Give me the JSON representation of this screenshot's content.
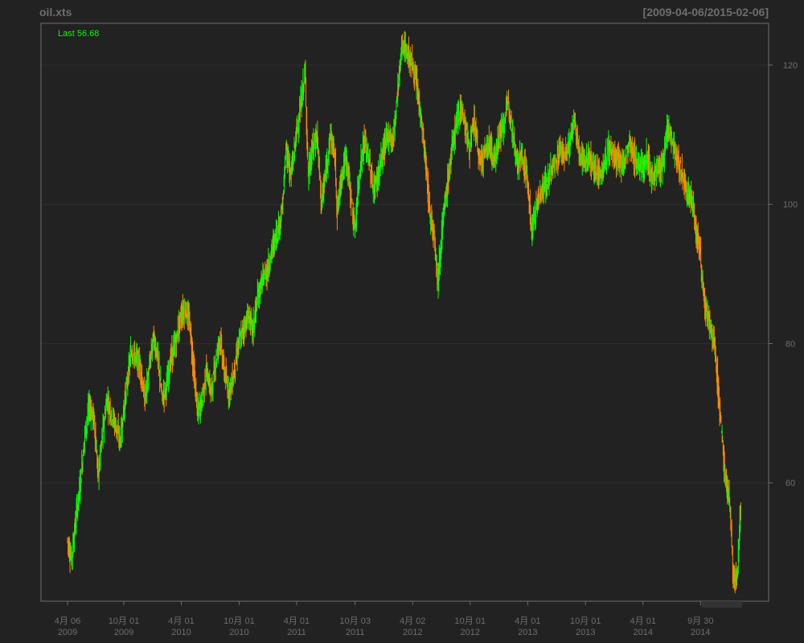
{
  "chart_data": {
    "type": "candlestick",
    "title": "oil.xts",
    "date_range": "[2009-04-06/2015-02-06]",
    "last_label": "Last 56.68",
    "ylim": [
      43,
      126
    ],
    "yticks": [
      60,
      80,
      100,
      120
    ],
    "grid": true,
    "colors": {
      "background": "#222222",
      "up": "#00ff00",
      "down": "#ff8c00",
      "text": "#6e6e6e",
      "grid": "#2e2e2e",
      "frame": "#6e6e6e",
      "last": "#00ff00"
    },
    "xticks": [
      {
        "date": "2009-04-06",
        "line1": "4月 06",
        "line2": "2009"
      },
      {
        "date": "2009-10-01",
        "line1": "10月 01",
        "line2": "2009"
      },
      {
        "date": "2010-04-01",
        "line1": "4月 01",
        "line2": "2010"
      },
      {
        "date": "2010-10-01",
        "line1": "10月 01",
        "line2": "2010"
      },
      {
        "date": "2011-04-01",
        "line1": "4月 01",
        "line2": "2011"
      },
      {
        "date": "2011-10-03",
        "line1": "10月 03",
        "line2": "2011"
      },
      {
        "date": "2012-04-02",
        "line1": "4月 02",
        "line2": "2012"
      },
      {
        "date": "2012-10-01",
        "line1": "10月 01",
        "line2": "2012"
      },
      {
        "date": "2013-04-01",
        "line1": "4月 01",
        "line2": "2013"
      },
      {
        "date": "2013-10-01",
        "line1": "10月 01",
        "line2": "2013"
      },
      {
        "date": "2014-04-01",
        "line1": "4月 01",
        "line2": "2014"
      },
      {
        "date": "2014-09-30",
        "line1": "9月 30",
        "line2": "2014"
      }
    ],
    "series": [
      {
        "values": [
          [
            "2009-04-06",
            52
          ],
          [
            "2009-04-20",
            49
          ],
          [
            "2009-05-04",
            55
          ],
          [
            "2009-05-18",
            60
          ],
          [
            "2009-06-01",
            67
          ],
          [
            "2009-06-15",
            71
          ],
          [
            "2009-07-01",
            69
          ],
          [
            "2009-07-13",
            61
          ],
          [
            "2009-07-27",
            67
          ],
          [
            "2009-08-10",
            72
          ],
          [
            "2009-08-24",
            70
          ],
          [
            "2009-09-08",
            68
          ],
          [
            "2009-09-21",
            66
          ],
          [
            "2009-10-01",
            70
          ],
          [
            "2009-10-12",
            74
          ],
          [
            "2009-10-26",
            79
          ],
          [
            "2009-11-09",
            78
          ],
          [
            "2009-11-23",
            77
          ],
          [
            "2009-12-07",
            72
          ],
          [
            "2009-12-21",
            76
          ],
          [
            "2010-01-04",
            81
          ],
          [
            "2010-01-18",
            78
          ],
          [
            "2010-02-01",
            72
          ],
          [
            "2010-02-15",
            74
          ],
          [
            "2010-03-01",
            78
          ],
          [
            "2010-03-15",
            80
          ],
          [
            "2010-04-01",
            84
          ],
          [
            "2010-04-15",
            85
          ],
          [
            "2010-04-29",
            83
          ],
          [
            "2010-05-10",
            77
          ],
          [
            "2010-05-24",
            70
          ],
          [
            "2010-06-07",
            72
          ],
          [
            "2010-06-21",
            76
          ],
          [
            "2010-07-06",
            73
          ],
          [
            "2010-07-19",
            77
          ],
          [
            "2010-08-02",
            81
          ],
          [
            "2010-08-16",
            76
          ],
          [
            "2010-08-30",
            73
          ],
          [
            "2010-09-13",
            75
          ],
          [
            "2010-10-01",
            80
          ],
          [
            "2010-10-15",
            82
          ],
          [
            "2010-11-01",
            84
          ],
          [
            "2010-11-15",
            82
          ],
          [
            "2010-12-01",
            87
          ],
          [
            "2010-12-15",
            89
          ],
          [
            "2011-01-03",
            91
          ],
          [
            "2011-01-17",
            94
          ],
          [
            "2011-02-01",
            96
          ],
          [
            "2011-02-15",
            99
          ],
          [
            "2011-03-01",
            108
          ],
          [
            "2011-03-15",
            104
          ],
          [
            "2011-04-01",
            110
          ],
          [
            "2011-04-15",
            114
          ],
          [
            "2011-04-29",
            119
          ],
          [
            "2011-05-09",
            104
          ],
          [
            "2011-05-23",
            108
          ],
          [
            "2011-06-06",
            110
          ],
          [
            "2011-06-20",
            100
          ],
          [
            "2011-07-05",
            105
          ],
          [
            "2011-07-18",
            110
          ],
          [
            "2011-08-01",
            107
          ],
          [
            "2011-08-09",
            99
          ],
          [
            "2011-08-22",
            104
          ],
          [
            "2011-09-06",
            107
          ],
          [
            "2011-09-19",
            102
          ],
          [
            "2011-10-03",
            96
          ],
          [
            "2011-10-17",
            104
          ],
          [
            "2011-11-01",
            109
          ],
          [
            "2011-11-15",
            107
          ],
          [
            "2011-12-01",
            102
          ],
          [
            "2011-12-15",
            104
          ],
          [
            "2012-01-03",
            108
          ],
          [
            "2012-01-17",
            110
          ],
          [
            "2012-02-01",
            109
          ],
          [
            "2012-02-15",
            116
          ],
          [
            "2012-03-01",
            123
          ],
          [
            "2012-03-15",
            122
          ],
          [
            "2012-04-02",
            120
          ],
          [
            "2012-04-16",
            117
          ],
          [
            "2012-05-01",
            112
          ],
          [
            "2012-05-14",
            106
          ],
          [
            "2012-05-29",
            98
          ],
          [
            "2012-06-11",
            96
          ],
          [
            "2012-06-22",
            89
          ],
          [
            "2012-07-09",
            98
          ],
          [
            "2012-07-23",
            103
          ],
          [
            "2012-08-06",
            108
          ],
          [
            "2012-08-20",
            112
          ],
          [
            "2012-09-04",
            114
          ],
          [
            "2012-09-17",
            111
          ],
          [
            "2012-10-01",
            108
          ],
          [
            "2012-10-15",
            112
          ],
          [
            "2012-11-01",
            106
          ],
          [
            "2012-11-15",
            107
          ],
          [
            "2012-12-03",
            109
          ],
          [
            "2012-12-17",
            106
          ],
          [
            "2013-01-02",
            110
          ],
          [
            "2013-01-15",
            111
          ],
          [
            "2013-02-01",
            115
          ],
          [
            "2013-02-15",
            110
          ],
          [
            "2013-03-01",
            106
          ],
          [
            "2013-03-15",
            107
          ],
          [
            "2013-04-01",
            104
          ],
          [
            "2013-04-15",
            96
          ],
          [
            "2013-05-01",
            100
          ],
          [
            "2013-05-15",
            102
          ],
          [
            "2013-06-03",
            103
          ],
          [
            "2013-06-17",
            105
          ],
          [
            "2013-07-01",
            106
          ],
          [
            "2013-07-15",
            108
          ],
          [
            "2013-08-01",
            107
          ],
          [
            "2013-08-15",
            109
          ],
          [
            "2013-08-28",
            112
          ],
          [
            "2013-09-09",
            108
          ],
          [
            "2013-10-01",
            106
          ],
          [
            "2013-10-15",
            107
          ],
          [
            "2013-11-01",
            105
          ],
          [
            "2013-11-15",
            104
          ],
          [
            "2013-12-02",
            106
          ],
          [
            "2013-12-16",
            108
          ],
          [
            "2014-01-02",
            107
          ],
          [
            "2014-01-15",
            106
          ],
          [
            "2014-02-03",
            106
          ],
          [
            "2014-02-18",
            109
          ],
          [
            "2014-03-03",
            107
          ],
          [
            "2014-03-17",
            106
          ],
          [
            "2014-04-01",
            105
          ],
          [
            "2014-04-15",
            107
          ],
          [
            "2014-05-01",
            104
          ],
          [
            "2014-05-15",
            105
          ],
          [
            "2014-06-02",
            105
          ],
          [
            "2014-06-19",
            111
          ],
          [
            "2014-07-01",
            110
          ],
          [
            "2014-07-15",
            107
          ],
          [
            "2014-08-01",
            105
          ],
          [
            "2014-08-15",
            102
          ],
          [
            "2014-09-02",
            101
          ],
          [
            "2014-09-15",
            97
          ],
          [
            "2014-10-01",
            93
          ],
          [
            "2014-10-15",
            85
          ],
          [
            "2014-11-03",
            82
          ],
          [
            "2014-11-17",
            79
          ],
          [
            "2014-12-01",
            71
          ],
          [
            "2014-12-15",
            62
          ],
          [
            "2015-01-02",
            57
          ],
          [
            "2015-01-13",
            46
          ],
          [
            "2015-01-26",
            47
          ],
          [
            "2015-02-06",
            56.68
          ]
        ]
      }
    ]
  }
}
